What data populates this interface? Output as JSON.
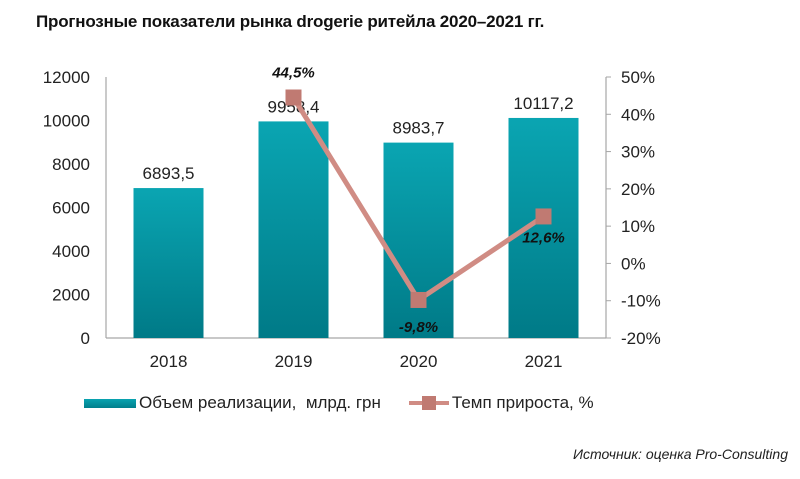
{
  "title": "Прогнозные показатели рынка drogerie ритейла 2020–2021 гг.",
  "source": "Источник: оценка Pro-Consulting",
  "colors": {
    "bar": "#009aa6",
    "line": "#d08c84",
    "marker": "#c07a72"
  },
  "chart_data": {
    "type": "bar+line",
    "title": "Прогнозные показатели рынка drogerie ритейла 2020–2021 гг.",
    "categories": [
      "2018",
      "2019",
      "2020",
      "2021"
    ],
    "series": [
      {
        "name": "Объем реализации,  млрд. грн",
        "type": "bar",
        "axis": "left",
        "values": [
          6893.5,
          9958.4,
          8983.7,
          10117.2
        ],
        "labels": [
          "6893,5",
          "9958,4",
          "8983,7",
          "10117,2"
        ]
      },
      {
        "name": "Темп прироста, %",
        "type": "line",
        "axis": "right",
        "x": [
          "2019",
          "2020",
          "2021"
        ],
        "values": [
          44.5,
          -9.8,
          12.6
        ],
        "labels": [
          "44,5%",
          "-9,8%",
          "12,6%"
        ]
      }
    ],
    "left_axis": {
      "ylim": [
        0,
        12000
      ],
      "ticks": [
        "0",
        "2000",
        "4000",
        "6000",
        "8000",
        "10000",
        "12000"
      ]
    },
    "right_axis": {
      "ylim": [
        -20,
        50
      ],
      "ticks": [
        "-20%",
        "-10%",
        "0%",
        "10%",
        "20%",
        "30%",
        "40%",
        "50%"
      ]
    },
    "grid": false,
    "legend": "bottom"
  }
}
